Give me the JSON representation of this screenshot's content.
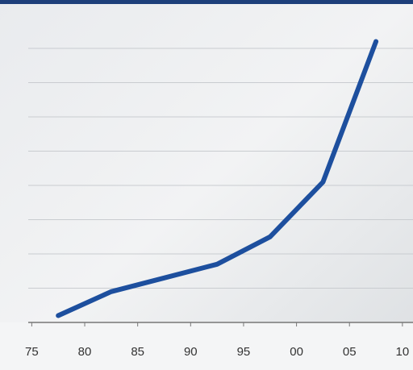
{
  "chart_data": {
    "type": "line",
    "x": [
      1977.5,
      1982.5,
      1987.5,
      1992.5,
      1997.5,
      2002.5,
      2007.5
    ],
    "series": [
      {
        "color": "#1d4f9e",
        "values": [
          0.2,
          0.9,
          1.3,
          1.7,
          2.5,
          4.1,
          8.2
        ]
      }
    ],
    "xlim": [
      1972,
      2011
    ],
    "xticks": [
      {
        "value": 1975,
        "label": "75"
      },
      {
        "value": 1980,
        "label": "80"
      },
      {
        "value": 1985,
        "label": "85"
      },
      {
        "value": 1990,
        "label": "90"
      },
      {
        "value": 1995,
        "label": "95"
      },
      {
        "value": 2000,
        "label": "00"
      },
      {
        "value": 2005,
        "label": "05"
      },
      {
        "value": 2010,
        "label": "10"
      }
    ],
    "ylim": [
      0,
      9
    ],
    "yticks": [
      0,
      1,
      2,
      3,
      4,
      5,
      6,
      7,
      8
    ],
    "grid": true
  }
}
